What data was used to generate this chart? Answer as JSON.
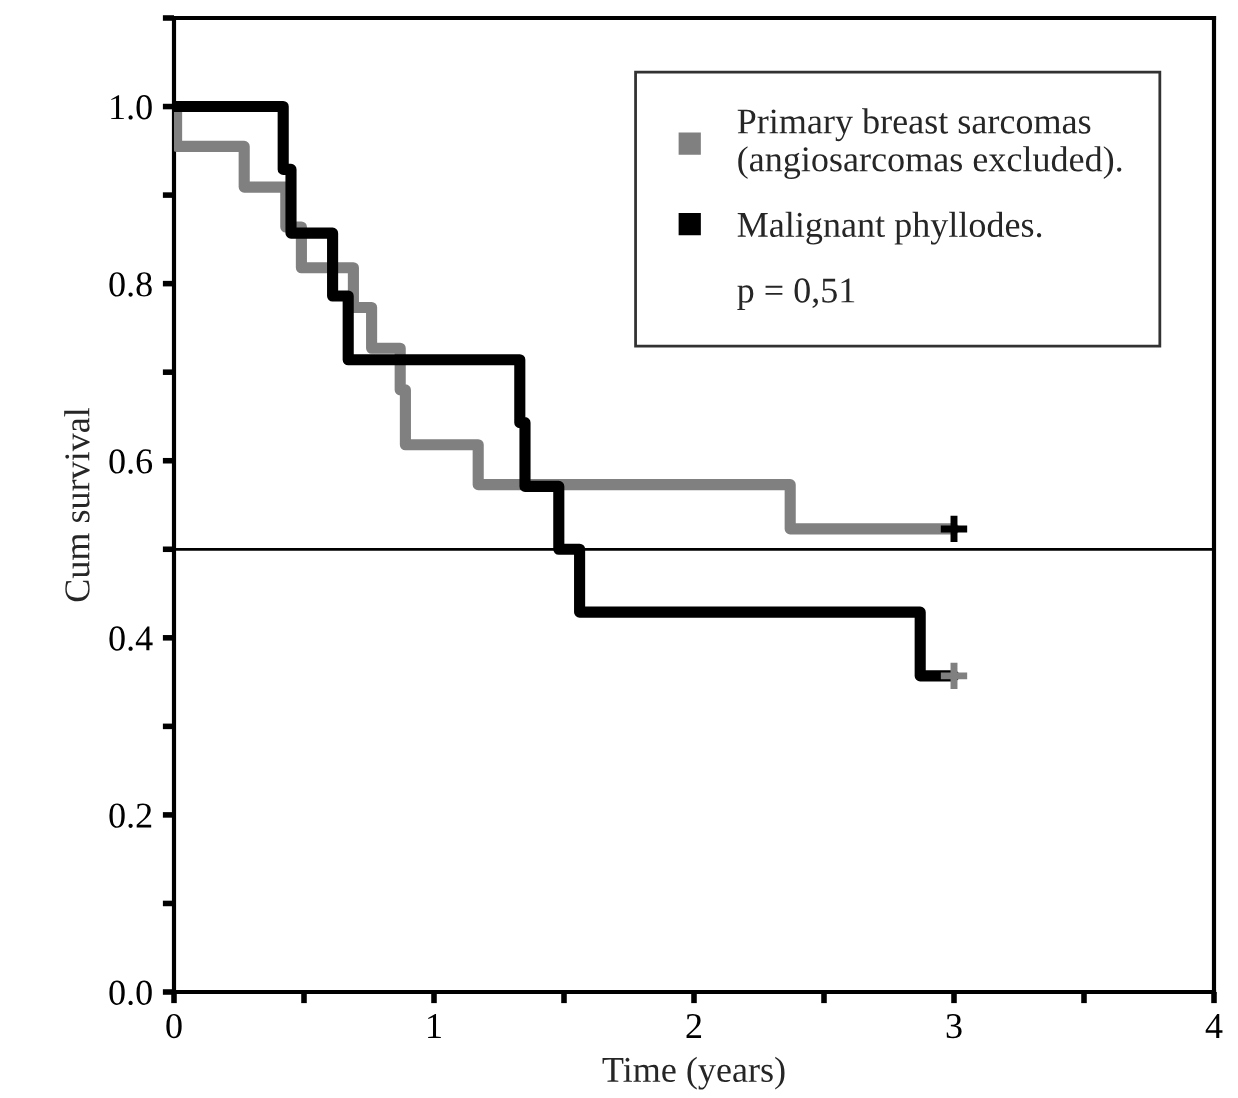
{
  "chart_data": {
    "type": "step",
    "xlabel": "Time (years)",
    "ylabel": "Cum survival",
    "xlim": [
      0,
      4
    ],
    "ylim": [
      0,
      1.1
    ],
    "xticks": [
      0,
      {
        "value": 0.5,
        "label": null
      },
      1,
      {
        "value": 1.5,
        "label": null
      },
      2,
      {
        "value": 2.5,
        "label": null
      },
      3,
      {
        "value": 3.5,
        "label": null
      },
      4
    ],
    "yticks": [
      {
        "value": 0,
        "label": "0.0"
      },
      {
        "value": 0.1,
        "label": null
      },
      {
        "value": 0.2,
        "label": "0.2"
      },
      {
        "value": 0.3,
        "label": null
      },
      {
        "value": 0.4,
        "label": "0.4"
      },
      {
        "value": 0.5,
        "label": null
      },
      {
        "value": 0.6,
        "label": "0.6"
      },
      {
        "value": 0.7,
        "label": null
      },
      {
        "value": 0.8,
        "label": "0.8"
      },
      {
        "value": 0.9,
        "label": null
      },
      {
        "value": 1.0,
        "label": "1.0"
      },
      {
        "value": 1.1,
        "label": null
      }
    ],
    "series": [
      {
        "name": "Primary breast sarcomas\n(angiosarcomas excluded).",
        "color": "#808080",
        "x": [
          0,
          0.01,
          0.27,
          0.43,
          0.49,
          0.69,
          0.76,
          0.87,
          0.89,
          1.17,
          2.37,
          3.0
        ],
        "values": [
          1.0,
          0.955,
          0.909,
          0.864,
          0.818,
          0.773,
          0.727,
          0.68,
          0.618,
          0.573,
          0.523,
          0.523
        ]
      },
      {
        "name": "Malignant phyllodes.",
        "color": "#000000",
        "x": [
          0,
          0.42,
          0.45,
          0.61,
          0.67,
          1.33,
          1.35,
          1.48,
          1.56,
          2.87,
          3.0
        ],
        "values": [
          1.0,
          0.929,
          0.857,
          0.786,
          0.714,
          0.643,
          0.571,
          0.5,
          0.429,
          0.357,
          0.357
        ]
      },
      {
        "type": "scatter",
        "marker": "cross",
        "colors": [
          "#000000",
          "#808080"
        ],
        "x": [
          3.0,
          3.0
        ],
        "values": [
          0.523,
          0.357
        ]
      }
    ],
    "ref_lines": [
      {
        "axis": "y",
        "value": 0.5,
        "color": "#000000"
      }
    ],
    "annotations": [
      "p = 0,51"
    ],
    "legend": "top right",
    "grid": false
  }
}
